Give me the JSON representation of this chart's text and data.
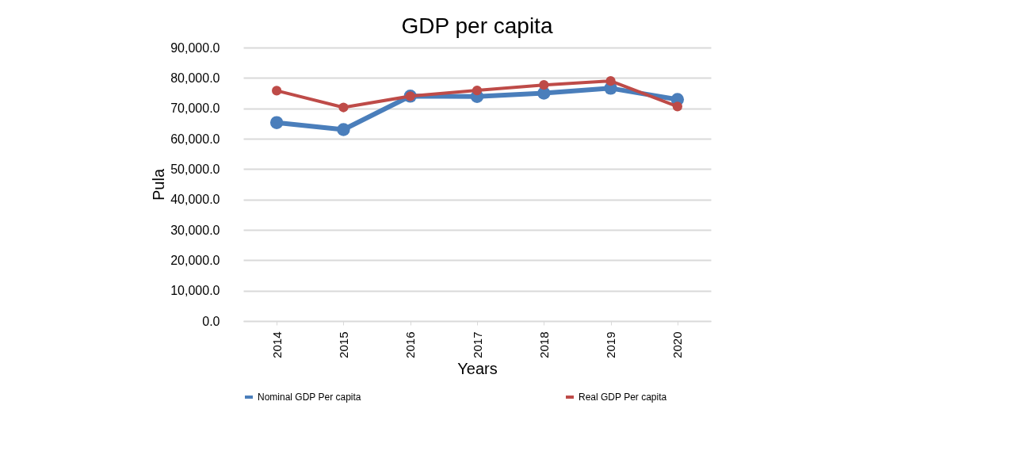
{
  "chart_data": {
    "type": "line",
    "title": "GDP per capita",
    "xlabel": "Years",
    "ylabel": "Pula",
    "categories": [
      "2014",
      "2015",
      "2016",
      "2017",
      "2018",
      "2019",
      "2020"
    ],
    "series": [
      {
        "name": "Nominal GDP Per capita",
        "color": "#4a7ebb",
        "values": [
          65300,
          63000,
          74000,
          73900,
          75000,
          76600,
          72900
        ]
      },
      {
        "name": "Real GDP Per capita",
        "color": "#be4b48",
        "values": [
          75800,
          70300,
          74000,
          75900,
          77700,
          79000,
          70600
        ]
      }
    ],
    "ylim": [
      0,
      90000
    ],
    "yticks": [
      {
        "value": 0,
        "label": "0.0"
      },
      {
        "value": 10000,
        "label": "10,000.0"
      },
      {
        "value": 20000,
        "label": "20,000.0"
      },
      {
        "value": 30000,
        "label": "30,000.0"
      },
      {
        "value": 40000,
        "label": "40,000.0"
      },
      {
        "value": 50000,
        "label": "50,000.0"
      },
      {
        "value": 60000,
        "label": "60,000.0"
      },
      {
        "value": 70000,
        "label": "70,000.0"
      },
      {
        "value": 80000,
        "label": "80,000.0"
      },
      {
        "value": 90000,
        "label": "90,000.0"
      }
    ],
    "grid": "y",
    "legend": "bottom",
    "marker": "circle",
    "line_style": "solid"
  }
}
